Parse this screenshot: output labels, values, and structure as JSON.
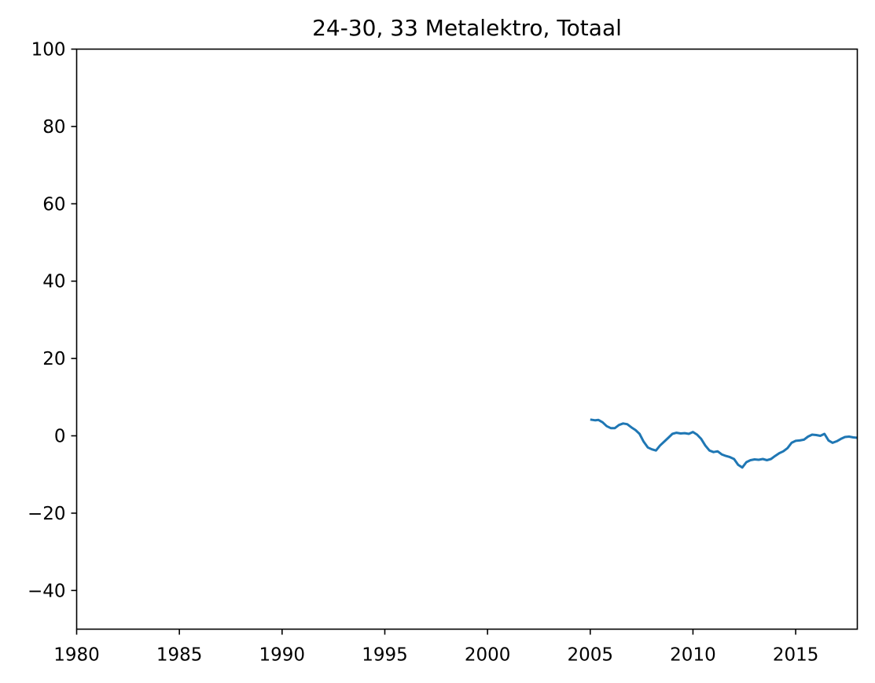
{
  "chart_data": {
    "type": "line",
    "title": "24-30, 33 Metalektro, Totaal",
    "xlabel": "",
    "ylabel": "",
    "xlim": [
      1980,
      2018
    ],
    "ylim": [
      -50,
      100
    ],
    "x_ticks": [
      1980,
      1985,
      1990,
      1995,
      2000,
      2005,
      2010,
      2015
    ],
    "x_tick_labels": [
      "1980",
      "1985",
      "1990",
      "1995",
      "2000",
      "2005",
      "2010",
      "2015"
    ],
    "y_ticks": [
      -40,
      -20,
      0,
      20,
      40,
      60,
      80,
      100
    ],
    "y_tick_labels": [
      "−40",
      "−20",
      "0",
      "20",
      "40",
      "60",
      "80",
      "100"
    ],
    "grid": false,
    "legend": "none",
    "series": [
      {
        "color": "#1f77b4",
        "x": [
          2005.0,
          2005.25,
          2005.4,
          2005.6,
          2005.8,
          2006.0,
          2006.2,
          2006.4,
          2006.6,
          2006.8,
          2007.0,
          2007.2,
          2007.4,
          2007.6,
          2007.8,
          2008.0,
          2008.2,
          2008.4,
          2008.6,
          2008.8,
          2009.0,
          2009.2,
          2009.4,
          2009.6,
          2009.8,
          2010.0,
          2010.2,
          2010.4,
          2010.6,
          2010.8,
          2011.0,
          2011.2,
          2011.4,
          2011.6,
          2011.8,
          2012.0,
          2012.2,
          2012.4,
          2012.6,
          2012.8,
          2013.0,
          2013.2,
          2013.4,
          2013.6,
          2013.8,
          2014.0,
          2014.2,
          2014.4,
          2014.6,
          2014.8,
          2015.0,
          2015.2,
          2015.4,
          2015.6,
          2015.8,
          2016.0,
          2016.2,
          2016.4,
          2016.6,
          2016.8,
          2017.0,
          2017.2,
          2017.4,
          2017.6,
          2017.8,
          2018.0
        ],
        "y": [
          4.2,
          4.0,
          4.1,
          3.5,
          2.5,
          2.0,
          2.0,
          2.8,
          3.2,
          3.0,
          2.2,
          1.5,
          0.5,
          -1.5,
          -3.0,
          -3.5,
          -3.8,
          -2.5,
          -1.5,
          -0.5,
          0.5,
          0.8,
          0.6,
          0.7,
          0.5,
          1.0,
          0.3,
          -0.8,
          -2.5,
          -3.8,
          -4.2,
          -4.0,
          -4.8,
          -5.2,
          -5.5,
          -6.0,
          -7.5,
          -8.2,
          -6.8,
          -6.3,
          -6.1,
          -6.2,
          -6.0,
          -6.3,
          -6.0,
          -5.2,
          -4.5,
          -4.0,
          -3.2,
          -1.8,
          -1.3,
          -1.2,
          -1.0,
          -0.2,
          0.3,
          0.2,
          0.0,
          0.5,
          -1.2,
          -1.8,
          -1.4,
          -0.8,
          -0.3,
          -0.2,
          -0.4,
          -0.5
        ]
      }
    ]
  }
}
